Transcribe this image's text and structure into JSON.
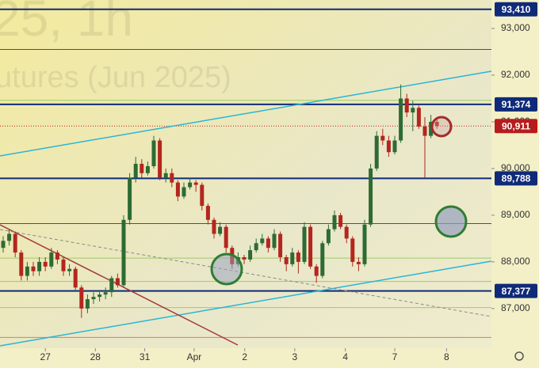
{
  "chart_data": {
    "type": "candlestick",
    "watermark_lines": [
      "25, 1h",
      "utures (Jun 2025)"
    ],
    "open": [
      88300,
      88450,
      88600,
      88200,
      87700,
      87900,
      87800,
      88000,
      87900,
      88200,
      88050,
      87800,
      87850,
      87450,
      87000,
      87200,
      87250,
      87300,
      87350,
      87650,
      87500,
      88900,
      89800,
      90100,
      89900,
      90050,
      90600,
      89800,
      89900,
      89700,
      89400,
      89600,
      89700,
      89650,
      89200,
      88900,
      88600,
      88750,
      88300,
      87950,
      88100,
      88050,
      88250,
      88400,
      88500,
      88300,
      88600,
      88100,
      87950,
      88200,
      88000,
      88750,
      87900,
      87700,
      88400,
      88700,
      89000,
      88750,
      88500,
      88000,
      87950,
      88800,
      90000,
      90700,
      90600,
      90350,
      90600,
      91500,
      91200,
      91300,
      90900,
      90700,
      91000
    ],
    "high": [
      88550,
      88700,
      88650,
      88250,
      88000,
      88000,
      88100,
      88100,
      88300,
      88250,
      88100,
      87950,
      87900,
      87500,
      87300,
      87350,
      87400,
      87450,
      87700,
      87750,
      89000,
      89900,
      90250,
      90200,
      90150,
      90700,
      90650,
      90000,
      90000,
      89750,
      89700,
      89800,
      89750,
      89700,
      89250,
      88950,
      88850,
      88800,
      88350,
      88200,
      88150,
      88350,
      88500,
      88600,
      88550,
      88700,
      88650,
      88150,
      88300,
      88250,
      88850,
      88800,
      87950,
      88450,
      88800,
      89100,
      89050,
      88800,
      88550,
      88100,
      88900,
      90100,
      90800,
      90850,
      90700,
      90700,
      91800,
      91600,
      91450,
      91350,
      91100,
      91150,
      91050
    ],
    "low": [
      88200,
      88350,
      88100,
      87600,
      87600,
      87700,
      87700,
      87800,
      87850,
      87950,
      87700,
      87700,
      87400,
      86800,
      86900,
      87100,
      87150,
      87200,
      87250,
      87450,
      87450,
      88800,
      89700,
      89800,
      89850,
      90000,
      89750,
      89700,
      89600,
      89300,
      89350,
      89550,
      89500,
      89100,
      88800,
      88500,
      88550,
      88200,
      87850,
      87900,
      87950,
      88000,
      88200,
      88350,
      88200,
      88250,
      88000,
      87800,
      87900,
      87750,
      87950,
      87850,
      87550,
      87650,
      88350,
      88650,
      88700,
      88400,
      87900,
      87800,
      87900,
      88750,
      89950,
      90500,
      90250,
      90300,
      90550,
      91100,
      90800,
      90850,
      89800,
      90650,
      90850
    ],
    "close": [
      88450,
      88600,
      88200,
      87700,
      87900,
      87800,
      88000,
      87900,
      88200,
      88050,
      87800,
      87850,
      87450,
      87000,
      87200,
      87250,
      87300,
      87350,
      87650,
      87500,
      88900,
      89800,
      90100,
      89900,
      90050,
      90600,
      89800,
      89900,
      89700,
      89400,
      89600,
      89700,
      89650,
      89200,
      88900,
      88600,
      88750,
      88300,
      87950,
      88100,
      88050,
      88250,
      88400,
      88500,
      88300,
      88600,
      88100,
      87950,
      88200,
      88000,
      88750,
      87900,
      87700,
      88400,
      88700,
      89000,
      88750,
      88500,
      88000,
      87950,
      88800,
      90000,
      90700,
      90600,
      90350,
      90600,
      91500,
      91200,
      91300,
      90900,
      90700,
      91000,
      90911
    ],
    "up_color": "#2e6b34",
    "down_color": "#b3261e",
    "ylim": [
      86150,
      93610
    ],
    "yticks": [
      {
        "value": 87000,
        "label": "87,000"
      },
      {
        "value": 88000,
        "label": "88,000"
      },
      {
        "value": 89000,
        "label": "89,000"
      },
      {
        "value": 90000,
        "label": "90,000"
      },
      {
        "value": 91000,
        "label": "91,000"
      },
      {
        "value": 92000,
        "label": "92,000"
      },
      {
        "value": 93000,
        "label": "93,000"
      }
    ],
    "xticks": [
      {
        "value": 7.0,
        "label": "27"
      },
      {
        "value": 15.3,
        "label": "28"
      },
      {
        "value": 23.5,
        "label": "31"
      },
      {
        "value": 31.7,
        "label": "Apr"
      },
      {
        "value": 40.1,
        "label": "2"
      },
      {
        "value": 48.4,
        "label": "3"
      },
      {
        "value": 56.8,
        "label": "4"
      },
      {
        "value": 65.0,
        "label": "7"
      },
      {
        "value": 73.6,
        "label": "8"
      }
    ],
    "levels": [
      {
        "value": 93410,
        "label": "93,410"
      },
      {
        "value": 91374,
        "label": "91,374"
      },
      {
        "value": 89788,
        "label": "89,788"
      },
      {
        "value": 87377,
        "label": "87,377"
      }
    ],
    "level_color": "#0f2a78",
    "last_price": {
      "value": 90911,
      "label": "90,911"
    },
    "last_price_color": "#b71c1c",
    "guide_lines": [
      {
        "value": 92550,
        "color": "#3949ab"
      },
      {
        "value": 91460,
        "color": "#9ccc65"
      },
      {
        "value": 88820,
        "color": "#3949ab"
      },
      {
        "value": 88080,
        "color": "#9ccc65"
      },
      {
        "value": 87580,
        "color": "#9ccc65"
      },
      {
        "value": 87020,
        "color": "#9ccc65"
      },
      {
        "value": 86380,
        "color": "#e57373"
      }
    ]
  }
}
